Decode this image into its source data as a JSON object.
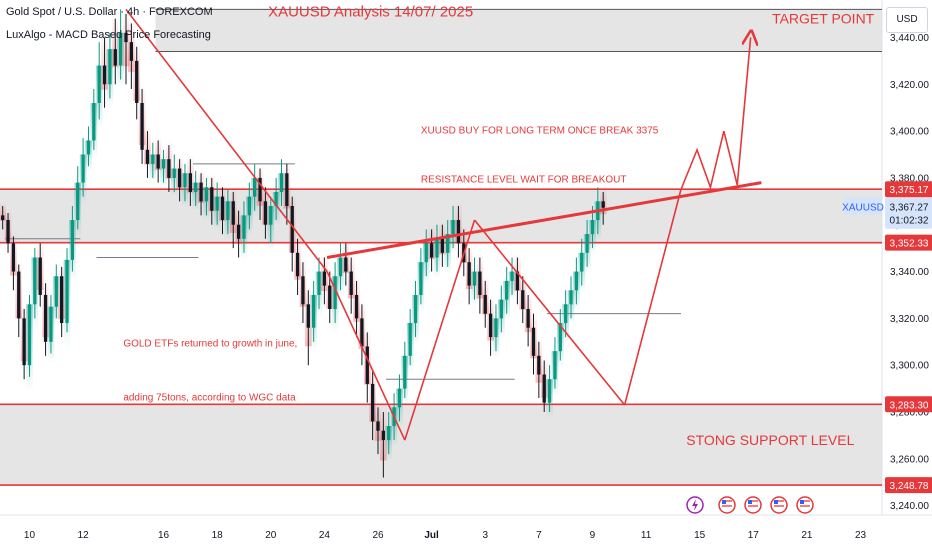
{
  "header": {
    "symbol_line": "Gold Spot / U.S. Dollar · 4h · FOREXCOM",
    "indicator_line": "LuxAlgo - MACD Based Price Forecasting",
    "currency": "USD"
  },
  "chart_data": {
    "type": "candlestick",
    "title": "XAUUSD Analysis 14/07/ 2025",
    "ylim": [
      3236,
      3456
    ],
    "y_ticks": [
      "3,240.00",
      "3,260.00",
      "3,280.00",
      "3,300.00",
      "3,320.00",
      "3,340.00",
      "3,360.00",
      "3,380.00",
      "3,400.00",
      "3,420.00",
      "3,440.00"
    ],
    "y_tick_values": [
      3240,
      3260,
      3280,
      3300,
      3320,
      3340,
      3360,
      3380,
      3400,
      3420,
      3440
    ],
    "x_ticks": [
      "10",
      "12",
      "16",
      "18",
      "20",
      "24",
      "26",
      "Jul",
      "3",
      "7",
      "9",
      "11",
      "15",
      "17",
      "21",
      "23"
    ],
    "x_tick_positions": [
      0.5,
      2.5,
      5.5,
      7.5,
      9.5,
      11.5,
      13.5,
      15.5,
      17.5,
      19.5,
      21.5,
      23.5,
      25.5,
      27.5,
      29.5,
      31.5
    ],
    "x_range": [
      -0.6,
      32.3
    ],
    "series": [
      {
        "symbol": "XAUUSD",
        "last": "3,367.27",
        "countdown": "01:02:32"
      }
    ],
    "price_labels": [
      {
        "text": "3,375.17",
        "value": 3375.17
      },
      {
        "text": "3,352.33",
        "value": 3352.33
      },
      {
        "text": "3,283.30",
        "value": 3283.3
      },
      {
        "text": "3,248.78",
        "value": 3248.78
      }
    ],
    "zones": [
      {
        "name": "target-zone",
        "from": 3434,
        "to": 3452,
        "x_start": 5.2
      },
      {
        "name": "resistance-zone",
        "from": 3352.33,
        "to": 3375.17,
        "x_start": -0.6
      },
      {
        "name": "support-zone",
        "from": 3248.78,
        "to": 3283.3,
        "x_start": -0.6
      }
    ],
    "candles": [
      [
        -0.5,
        3364,
        3362,
        3368,
        3358
      ],
      [
        -0.3,
        3362,
        3352,
        3365,
        3348
      ],
      [
        -0.1,
        3352,
        3340,
        3355,
        3332
      ],
      [
        0.1,
        3340,
        3320,
        3343,
        3312
      ],
      [
        0.3,
        3320,
        3300,
        3324,
        3294
      ],
      [
        0.5,
        3300,
        3326,
        3330,
        3295
      ],
      [
        0.7,
        3326,
        3346,
        3350,
        3320
      ],
      [
        0.9,
        3346,
        3330,
        3352,
        3325
      ],
      [
        1.1,
        3330,
        3310,
        3335,
        3304
      ],
      [
        1.3,
        3310,
        3325,
        3330,
        3305
      ],
      [
        1.5,
        3325,
        3338,
        3343,
        3320
      ],
      [
        1.7,
        3338,
        3318,
        3342,
        3312
      ],
      [
        1.9,
        3318,
        3345,
        3350,
        3314
      ],
      [
        2.1,
        3345,
        3362,
        3368,
        3340
      ],
      [
        2.3,
        3362,
        3378,
        3385,
        3358
      ],
      [
        2.5,
        3378,
        3390,
        3397,
        3372
      ],
      [
        2.7,
        3390,
        3396,
        3402,
        3385
      ],
      [
        2.9,
        3396,
        3412,
        3418,
        3392
      ],
      [
        3.1,
        3412,
        3428,
        3438,
        3405
      ],
      [
        3.3,
        3428,
        3420,
        3440,
        3410
      ],
      [
        3.5,
        3420,
        3435,
        3442,
        3414
      ],
      [
        3.7,
        3435,
        3428,
        3448,
        3420
      ],
      [
        3.9,
        3428,
        3442,
        3452,
        3422
      ],
      [
        4.1,
        3442,
        3438,
        3450,
        3420
      ],
      [
        4.3,
        3438,
        3430,
        3446,
        3418
      ],
      [
        4.5,
        3430,
        3412,
        3436,
        3405
      ],
      [
        4.7,
        3412,
        3392,
        3418,
        3386
      ],
      [
        4.9,
        3392,
        3386,
        3400,
        3380
      ],
      [
        5.1,
        3386,
        3390,
        3395,
        3380
      ],
      [
        5.3,
        3390,
        3384,
        3396,
        3378
      ],
      [
        5.5,
        3384,
        3388,
        3392,
        3378
      ],
      [
        5.7,
        3388,
        3380,
        3394,
        3374
      ],
      [
        5.9,
        3380,
        3384,
        3390,
        3374
      ],
      [
        6.1,
        3384,
        3376,
        3388,
        3370
      ],
      [
        6.3,
        3376,
        3382,
        3386,
        3370
      ],
      [
        6.5,
        3382,
        3374,
        3388,
        3368
      ],
      [
        6.7,
        3374,
        3378,
        3383,
        3368
      ],
      [
        6.9,
        3378,
        3370,
        3382,
        3364
      ],
      [
        7.1,
        3370,
        3376,
        3380,
        3364
      ],
      [
        7.3,
        3376,
        3366,
        3380,
        3360
      ],
      [
        7.5,
        3366,
        3372,
        3378,
        3360
      ],
      [
        7.7,
        3372,
        3362,
        3376,
        3356
      ],
      [
        7.9,
        3362,
        3370,
        3375,
        3356
      ],
      [
        8.1,
        3370,
        3360,
        3374,
        3350
      ],
      [
        8.3,
        3360,
        3354,
        3366,
        3346
      ],
      [
        8.5,
        3354,
        3364,
        3370,
        3348
      ],
      [
        8.7,
        3364,
        3372,
        3378,
        3358
      ],
      [
        8.9,
        3372,
        3380,
        3386,
        3366
      ],
      [
        9.1,
        3380,
        3370,
        3384,
        3362
      ],
      [
        9.3,
        3370,
        3360,
        3376,
        3354
      ],
      [
        9.5,
        3360,
        3368,
        3372,
        3352
      ],
      [
        9.7,
        3368,
        3374,
        3380,
        3362
      ],
      [
        9.9,
        3374,
        3382,
        3388,
        3368
      ],
      [
        10.1,
        3382,
        3368,
        3386,
        3360
      ],
      [
        10.3,
        3368,
        3348,
        3372,
        3340
      ],
      [
        10.5,
        3348,
        3338,
        3354,
        3330
      ],
      [
        10.7,
        3338,
        3326,
        3344,
        3318
      ],
      [
        10.9,
        3326,
        3316,
        3332,
        3300
      ],
      [
        11.1,
        3316,
        3330,
        3336,
        3310
      ],
      [
        11.3,
        3330,
        3340,
        3346,
        3324
      ],
      [
        11.5,
        3340,
        3334,
        3346,
        3326
      ],
      [
        11.7,
        3334,
        3324,
        3340,
        3318
      ],
      [
        11.9,
        3324,
        3338,
        3344,
        3318
      ],
      [
        12.1,
        3338,
        3346,
        3352,
        3332
      ],
      [
        12.3,
        3346,
        3340,
        3352,
        3334
      ],
      [
        12.5,
        3340,
        3330,
        3346,
        3322
      ],
      [
        12.7,
        3330,
        3320,
        3336,
        3312
      ],
      [
        12.9,
        3320,
        3308,
        3326,
        3300
      ],
      [
        13.1,
        3308,
        3292,
        3314,
        3284
      ],
      [
        13.3,
        3292,
        3276,
        3298,
        3268
      ],
      [
        13.5,
        3276,
        3272,
        3282,
        3262
      ],
      [
        13.7,
        3272,
        3268,
        3280,
        3252
      ],
      [
        13.9,
        3268,
        3274,
        3280,
        3262
      ],
      [
        14.1,
        3274,
        3282,
        3288,
        3268
      ],
      [
        14.3,
        3282,
        3290,
        3296,
        3276
      ],
      [
        14.5,
        3290,
        3304,
        3310,
        3286
      ],
      [
        14.7,
        3304,
        3318,
        3324,
        3300
      ],
      [
        14.9,
        3318,
        3330,
        3336,
        3312
      ],
      [
        15.1,
        3330,
        3344,
        3350,
        3326
      ],
      [
        15.3,
        3344,
        3352,
        3358,
        3338
      ],
      [
        15.5,
        3352,
        3346,
        3358,
        3340
      ],
      [
        15.7,
        3346,
        3354,
        3360,
        3340
      ],
      [
        15.9,
        3354,
        3348,
        3360,
        3342
      ],
      [
        16.1,
        3348,
        3356,
        3362,
        3342
      ],
      [
        16.3,
        3356,
        3362,
        3368,
        3350
      ],
      [
        16.5,
        3362,
        3352,
        3368,
        3346
      ],
      [
        16.7,
        3352,
        3344,
        3358,
        3338
      ],
      [
        16.9,
        3344,
        3334,
        3350,
        3326
      ],
      [
        17.1,
        3334,
        3340,
        3346,
        3328
      ],
      [
        17.3,
        3340,
        3330,
        3346,
        3322
      ],
      [
        17.5,
        3330,
        3322,
        3336,
        3316
      ],
      [
        17.7,
        3322,
        3312,
        3328,
        3304
      ],
      [
        17.9,
        3312,
        3320,
        3326,
        3306
      ],
      [
        18.1,
        3320,
        3328,
        3334,
        3314
      ],
      [
        18.3,
        3328,
        3336,
        3342,
        3322
      ],
      [
        18.5,
        3336,
        3340,
        3346,
        3330
      ],
      [
        18.7,
        3340,
        3332,
        3346,
        3326
      ],
      [
        18.9,
        3332,
        3324,
        3338,
        3318
      ],
      [
        19.1,
        3324,
        3316,
        3330,
        3308
      ],
      [
        19.3,
        3316,
        3304,
        3322,
        3296
      ],
      [
        19.5,
        3304,
        3296,
        3310,
        3286
      ],
      [
        19.7,
        3296,
        3284,
        3302,
        3280
      ],
      [
        19.9,
        3284,
        3294,
        3300,
        3280
      ],
      [
        20.1,
        3294,
        3306,
        3312,
        3290
      ],
      [
        20.3,
        3306,
        3318,
        3324,
        3302
      ],
      [
        20.5,
        3318,
        3326,
        3332,
        3312
      ],
      [
        20.7,
        3326,
        3332,
        3338,
        3320
      ],
      [
        20.9,
        3332,
        3340,
        3346,
        3326
      ],
      [
        21.1,
        3340,
        3348,
        3354,
        3334
      ],
      [
        21.3,
        3348,
        3356,
        3362,
        3342
      ],
      [
        21.5,
        3356,
        3362,
        3368,
        3350
      ],
      [
        21.7,
        3362,
        3370,
        3376,
        3356
      ],
      [
        21.9,
        3370,
        3367.27,
        3374,
        3360
      ]
    ],
    "levels_gray": [
      {
        "from_x": 6.6,
        "to_x": 10.4,
        "value": 3386
      },
      {
        "from_x": 3.0,
        "to_x": 6.8,
        "value": 3346
      },
      {
        "from_x": -0.4,
        "to_x": 2.4,
        "value": 3354
      },
      {
        "from_x": 13.8,
        "to_x": 18.6,
        "value": 3294
      },
      {
        "from_x": 19.8,
        "to_x": 24.8,
        "value": 3322
      }
    ],
    "trendlines": [
      {
        "name": "downtrend-line",
        "points": [
          [
            4.1,
            3452
          ],
          [
            11.6,
            3340
          ]
        ]
      },
      {
        "name": "fall-leg",
        "points": [
          [
            11.6,
            3340
          ],
          [
            14.5,
            3268
          ]
        ]
      },
      {
        "name": "rise-leg",
        "points": [
          [
            14.5,
            3268
          ],
          [
            17.1,
            3362
          ]
        ]
      },
      {
        "name": "ascending-resistance",
        "points": [
          [
            11.6,
            3346
          ],
          [
            27.8,
            3378
          ]
        ],
        "width": 3
      },
      {
        "name": "channel-drop",
        "points": [
          [
            17.1,
            3362
          ],
          [
            22.7,
            3283
          ]
        ]
      },
      {
        "name": "channel-rise",
        "points": [
          [
            22.7,
            3283
          ],
          [
            24.8,
            3375
          ]
        ]
      },
      {
        "name": "projection-path",
        "points": [
          [
            24.8,
            3375
          ],
          [
            25.4,
            3392
          ],
          [
            25.9,
            3376
          ],
          [
            26.4,
            3400
          ],
          [
            26.9,
            3377
          ],
          [
            27.4,
            3440
          ]
        ],
        "arrow": true
      }
    ],
    "annotations": [
      {
        "text": "XAUUSD Analysis 14/07/ 2025",
        "x": 9.4,
        "y": 3449,
        "size": 15
      },
      {
        "text": "TARGET POINT",
        "x": 28.2,
        "y": 3446,
        "size": 14
      },
      {
        "text": "XUUSD BUY FOR LONG TERM ONCE BREAK 3375",
        "x": 15.1,
        "y": 3399,
        "size": 10
      },
      {
        "text": "RESISTANCE LEVEL WAIT FOR BREAKOUT",
        "x": 15.1,
        "y": 3378,
        "size": 10
      },
      {
        "text": "GOLD ETFs returned to growth in june,",
        "x": 4.0,
        "y": 3308,
        "size": 10
      },
      {
        "text": "adding 75tons, according to WGC data",
        "x": 4.0,
        "y": 3285,
        "size": 10
      },
      {
        "text": "STONG SUPPORT LEVEL",
        "x": 25.0,
        "y": 3266,
        "size": 14
      }
    ]
  }
}
